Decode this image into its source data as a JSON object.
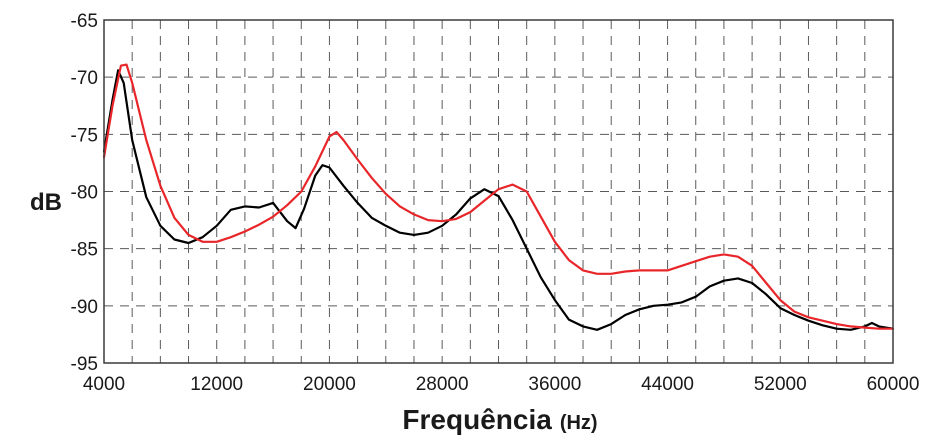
{
  "chart_data": {
    "type": "line",
    "xlabel": "Frequência",
    "xlabel_unit": "(Hz)",
    "ylabel": "dB",
    "xlim": [
      4000,
      60000
    ],
    "ylim": [
      -95,
      -65
    ],
    "x_ticks": [
      4000,
      12000,
      20000,
      28000,
      36000,
      44000,
      52000,
      60000
    ],
    "x_tick_labels": [
      "4000",
      "12000",
      "20000",
      "28000",
      "36000",
      "44000",
      "52000",
      "60000"
    ],
    "y_ticks": [
      -65,
      -70,
      -75,
      -80,
      -85,
      -90,
      -95
    ],
    "y_tick_labels": [
      "-65",
      "-70",
      "-75",
      "-80",
      "-85",
      "-90",
      "-95"
    ],
    "grid": true,
    "series": [
      {
        "color": "#000000",
        "points": [
          [
            4000,
            -76.5
          ],
          [
            4600,
            -72.0
          ],
          [
            5000,
            -69.4
          ],
          [
            5400,
            -70.5
          ],
          [
            6000,
            -75.5
          ],
          [
            7000,
            -80.5
          ],
          [
            8000,
            -83.0
          ],
          [
            9000,
            -84.2
          ],
          [
            10000,
            -84.5
          ],
          [
            11000,
            -84.0
          ],
          [
            12000,
            -83.0
          ],
          [
            13000,
            -81.6
          ],
          [
            14000,
            -81.3
          ],
          [
            15000,
            -81.4
          ],
          [
            16000,
            -81.0
          ],
          [
            17000,
            -82.6
          ],
          [
            17600,
            -83.2
          ],
          [
            18200,
            -81.5
          ],
          [
            19000,
            -78.6
          ],
          [
            19500,
            -77.7
          ],
          [
            20000,
            -77.9
          ],
          [
            21000,
            -79.5
          ],
          [
            22000,
            -81.0
          ],
          [
            23000,
            -82.3
          ],
          [
            24000,
            -83.0
          ],
          [
            25000,
            -83.6
          ],
          [
            26000,
            -83.8
          ],
          [
            27000,
            -83.6
          ],
          [
            28000,
            -83.0
          ],
          [
            29000,
            -82.0
          ],
          [
            30000,
            -80.6
          ],
          [
            31000,
            -79.8
          ],
          [
            32000,
            -80.4
          ],
          [
            33000,
            -82.5
          ],
          [
            34000,
            -85.0
          ],
          [
            35000,
            -87.5
          ],
          [
            36000,
            -89.5
          ],
          [
            37000,
            -91.2
          ],
          [
            38000,
            -91.8
          ],
          [
            39000,
            -92.1
          ],
          [
            40000,
            -91.6
          ],
          [
            41000,
            -90.8
          ],
          [
            42000,
            -90.3
          ],
          [
            43000,
            -90.0
          ],
          [
            44000,
            -89.9
          ],
          [
            45000,
            -89.7
          ],
          [
            46000,
            -89.2
          ],
          [
            47000,
            -88.3
          ],
          [
            48000,
            -87.8
          ],
          [
            49000,
            -87.6
          ],
          [
            50000,
            -88.0
          ],
          [
            51000,
            -89.0
          ],
          [
            52000,
            -90.2
          ],
          [
            53000,
            -90.8
          ],
          [
            54000,
            -91.3
          ],
          [
            55000,
            -91.7
          ],
          [
            56000,
            -92.0
          ],
          [
            57000,
            -92.1
          ],
          [
            58000,
            -91.8
          ],
          [
            58500,
            -91.5
          ],
          [
            59000,
            -91.8
          ],
          [
            60000,
            -92.0
          ]
        ]
      },
      {
        "color": "#e8262a",
        "points": [
          [
            4000,
            -77.0
          ],
          [
            4600,
            -72.5
          ],
          [
            5200,
            -69.0
          ],
          [
            5600,
            -68.9
          ],
          [
            6000,
            -70.5
          ],
          [
            7000,
            -75.5
          ],
          [
            8000,
            -79.5
          ],
          [
            9000,
            -82.3
          ],
          [
            10000,
            -83.8
          ],
          [
            11000,
            -84.4
          ],
          [
            12000,
            -84.4
          ],
          [
            13000,
            -84.0
          ],
          [
            14000,
            -83.5
          ],
          [
            15000,
            -82.9
          ],
          [
            16000,
            -82.2
          ],
          [
            17000,
            -81.2
          ],
          [
            18000,
            -80.0
          ],
          [
            19000,
            -77.8
          ],
          [
            20000,
            -75.2
          ],
          [
            20500,
            -74.8
          ],
          [
            21000,
            -75.5
          ],
          [
            22000,
            -77.2
          ],
          [
            23000,
            -78.8
          ],
          [
            24000,
            -80.2
          ],
          [
            25000,
            -81.3
          ],
          [
            26000,
            -82.0
          ],
          [
            27000,
            -82.5
          ],
          [
            28000,
            -82.6
          ],
          [
            29000,
            -82.4
          ],
          [
            30000,
            -81.8
          ],
          [
            31000,
            -80.8
          ],
          [
            32000,
            -79.8
          ],
          [
            33000,
            -79.4
          ],
          [
            34000,
            -80.0
          ],
          [
            35000,
            -82.2
          ],
          [
            36000,
            -84.4
          ],
          [
            37000,
            -86.0
          ],
          [
            38000,
            -86.9
          ],
          [
            39000,
            -87.2
          ],
          [
            40000,
            -87.2
          ],
          [
            41000,
            -87.0
          ],
          [
            42000,
            -86.9
          ],
          [
            43000,
            -86.9
          ],
          [
            44000,
            -86.9
          ],
          [
            45000,
            -86.5
          ],
          [
            46000,
            -86.1
          ],
          [
            47000,
            -85.7
          ],
          [
            48000,
            -85.5
          ],
          [
            49000,
            -85.7
          ],
          [
            50000,
            -86.5
          ],
          [
            51000,
            -88.0
          ],
          [
            52000,
            -89.5
          ],
          [
            53000,
            -90.5
          ],
          [
            54000,
            -91.0
          ],
          [
            55000,
            -91.3
          ],
          [
            56000,
            -91.6
          ],
          [
            57000,
            -91.8
          ],
          [
            58000,
            -91.9
          ],
          [
            59000,
            -92.0
          ],
          [
            60000,
            -92.0
          ]
        ]
      }
    ]
  }
}
